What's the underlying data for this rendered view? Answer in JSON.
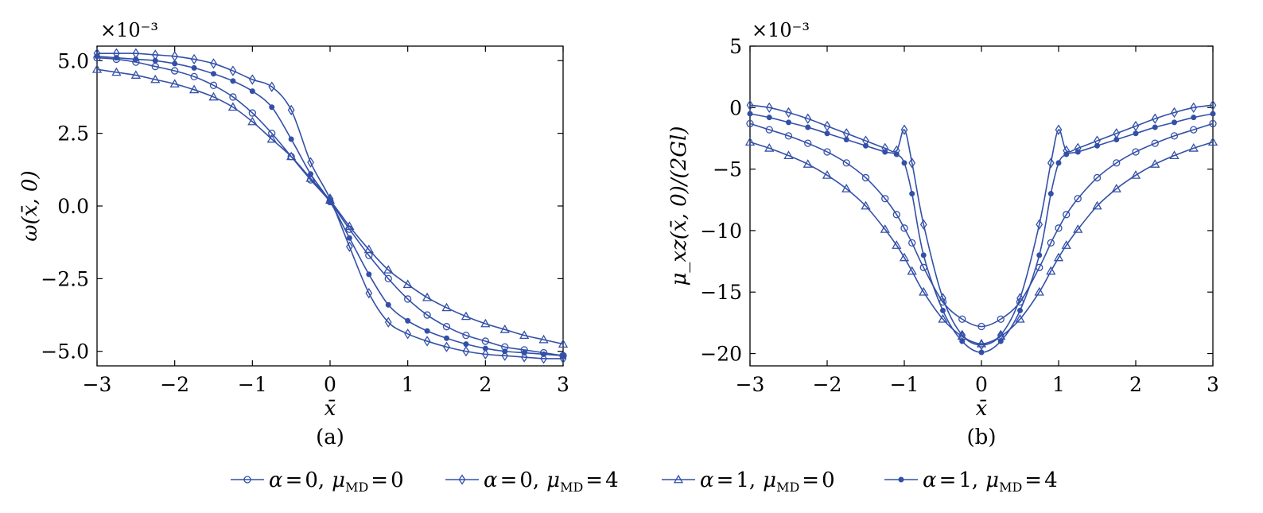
{
  "chart_data": [
    {
      "type": "line",
      "panel": "(a)",
      "caption": "(a)",
      "xlabel": "x̄",
      "ylabel": "ω(x̄, 0)",
      "y_multiplier": "×10⁻³",
      "xlim": [
        -3,
        3
      ],
      "ylim": [
        -5.5,
        5.5
      ],
      "x_ticks": [
        -3,
        -2,
        -1,
        0,
        1,
        2,
        3
      ],
      "y_ticks": [
        -5.0,
        -2.5,
        0.0,
        2.5,
        5.0
      ],
      "x_tick_labels": [
        "−3",
        "−2",
        "−1",
        "0",
        "1",
        "2",
        "3"
      ],
      "y_tick_labels": [
        "−5.0",
        "−2.5",
        "0.0",
        "2.5",
        "5.0"
      ],
      "grid": false,
      "x": [
        -3,
        -2.75,
        -2.5,
        -2.25,
        -2,
        -1.75,
        -1.5,
        -1.25,
        -1,
        -0.75,
        -0.5,
        -0.25,
        0,
        0.25,
        0.5,
        0.75,
        1,
        1.25,
        1.5,
        1.75,
        2,
        2.25,
        2.5,
        2.75,
        3
      ],
      "series": [
        {
          "name": "α = 0, μ_MD = 0",
          "marker": "circle",
          "values": [
            5.1,
            5.05,
            4.95,
            4.8,
            4.65,
            4.45,
            4.15,
            3.75,
            3.2,
            2.5,
            1.7,
            0.9,
            0.15,
            -0.8,
            -1.7,
            -2.5,
            -3.2,
            -3.75,
            -4.15,
            -4.45,
            -4.65,
            -4.85,
            -4.95,
            -5.05,
            -5.15
          ]
        },
        {
          "name": "α = 0, μ_MD = 4",
          "marker": "diamond",
          "values": [
            5.25,
            5.25,
            5.25,
            5.2,
            5.15,
            5.05,
            4.9,
            4.65,
            4.35,
            4.1,
            3.3,
            1.5,
            0.25,
            -1.4,
            -3.0,
            -4.0,
            -4.4,
            -4.65,
            -4.85,
            -5.0,
            -5.1,
            -5.15,
            -5.2,
            -5.25,
            -5.25
          ]
        },
        {
          "name": "α = 1, μ_MD = 0",
          "marker": "triangle",
          "values": [
            4.7,
            4.6,
            4.5,
            4.35,
            4.2,
            4.0,
            3.75,
            3.4,
            2.9,
            2.3,
            1.7,
            0.95,
            0.2,
            -0.7,
            -1.5,
            -2.2,
            -2.7,
            -3.15,
            -3.5,
            -3.8,
            -4.05,
            -4.25,
            -4.45,
            -4.6,
            -4.75
          ]
        },
        {
          "name": "α = 1, μ_MD = 4",
          "marker": "star",
          "values": [
            5.15,
            5.1,
            5.05,
            5.0,
            4.9,
            4.75,
            4.55,
            4.3,
            3.95,
            3.4,
            2.3,
            1.1,
            0.15,
            -1.1,
            -2.35,
            -3.4,
            -3.95,
            -4.3,
            -4.55,
            -4.75,
            -4.9,
            -5.0,
            -5.05,
            -5.1,
            -5.15
          ]
        }
      ]
    },
    {
      "type": "line",
      "panel": "(b)",
      "caption": "(b)",
      "xlabel": "x̄",
      "ylabel": "μ_xz(x̄, 0)/(2Gl)",
      "y_multiplier": "×10⁻³",
      "xlim": [
        -3,
        3
      ],
      "ylim": [
        -21,
        5
      ],
      "x_ticks": [
        -3,
        -2,
        -1,
        0,
        1,
        2,
        3
      ],
      "y_ticks": [
        -20,
        -15,
        -10,
        -5,
        0,
        5
      ],
      "x_tick_labels": [
        "−3",
        "−2",
        "−1",
        "0",
        "1",
        "2",
        "3"
      ],
      "y_tick_labels": [
        "−20",
        "−15",
        "−10",
        "−5",
        "0",
        "5"
      ],
      "grid": false,
      "x": [
        -3,
        -2.75,
        -2.5,
        -2.25,
        -2,
        -1.75,
        -1.5,
        -1.25,
        -1.1,
        -1,
        -0.9,
        -0.75,
        -0.5,
        -0.25,
        0,
        0.25,
        0.5,
        0.75,
        0.9,
        1,
        1.1,
        1.25,
        1.5,
        1.75,
        2,
        2.25,
        2.5,
        2.75,
        3
      ],
      "series": [
        {
          "name": "α = 0, μ_MD = 0",
          "marker": "circle",
          "values": [
            -1.3,
            -1.8,
            -2.3,
            -2.9,
            -3.6,
            -4.5,
            -5.7,
            -7.4,
            -8.7,
            -9.8,
            -11.0,
            -13.0,
            -15.8,
            -17.2,
            -17.8,
            -17.2,
            -15.8,
            -13.0,
            -11.0,
            -9.8,
            -8.7,
            -7.4,
            -5.7,
            -4.5,
            -3.6,
            -2.9,
            -2.3,
            -1.8,
            -1.3
          ]
        },
        {
          "name": "α = 0, μ_MD = 4",
          "marker": "diamond",
          "values": [
            0.2,
            0.0,
            -0.4,
            -0.9,
            -1.5,
            -2.1,
            -2.7,
            -3.3,
            -3.5,
            -1.8,
            -4.5,
            -9.5,
            -15.5,
            -18.5,
            -19.3,
            -18.5,
            -15.5,
            -9.5,
            -4.5,
            -1.8,
            -3.5,
            -3.3,
            -2.7,
            -2.1,
            -1.5,
            -0.9,
            -0.4,
            0.0,
            0.2
          ]
        },
        {
          "name": "α = 1, μ_MD = 0",
          "marker": "triangle",
          "values": [
            -2.8,
            -3.3,
            -3.9,
            -4.6,
            -5.5,
            -6.6,
            -8.0,
            -9.9,
            -11.2,
            -12.2,
            -13.3,
            -15.0,
            -17.2,
            -18.6,
            -19.2,
            -18.6,
            -17.2,
            -15.0,
            -13.3,
            -12.2,
            -11.2,
            -9.9,
            -8.0,
            -6.6,
            -5.5,
            -4.6,
            -3.9,
            -3.3,
            -2.8
          ]
        },
        {
          "name": "α = 1, μ_MD = 4",
          "marker": "star",
          "values": [
            -0.5,
            -0.8,
            -1.2,
            -1.6,
            -2.1,
            -2.6,
            -3.1,
            -3.6,
            -3.8,
            -4.5,
            -7.0,
            -12.0,
            -16.5,
            -19.0,
            -19.9,
            -19.0,
            -16.5,
            -12.0,
            -7.0,
            -4.5,
            -3.8,
            -3.6,
            -3.1,
            -2.6,
            -2.1,
            -1.6,
            -1.2,
            -0.8,
            -0.5
          ]
        }
      ]
    }
  ],
  "legend": {
    "placement": "bottom",
    "entries": [
      {
        "alpha": "α",
        "eq1": "=",
        "alpha_val": "0,",
        "mu": "μ",
        "mu_sub": "MD",
        "eq2": "=",
        "mu_val": "0",
        "marker": "circle"
      },
      {
        "alpha": "α",
        "eq1": "=",
        "alpha_val": "0,",
        "mu": "μ",
        "mu_sub": "MD",
        "eq2": "=",
        "mu_val": "4",
        "marker": "diamond"
      },
      {
        "alpha": "α",
        "eq1": "=",
        "alpha_val": "1,",
        "mu": "μ",
        "mu_sub": "MD",
        "eq2": "=",
        "mu_val": "0",
        "marker": "triangle"
      },
      {
        "alpha": "α",
        "eq1": "=",
        "alpha_val": "1,",
        "mu": "μ",
        "mu_sub": "MD",
        "eq2": "=",
        "mu_val": "4",
        "marker": "star"
      }
    ]
  },
  "colors": {
    "series": "#3350a8",
    "axes": "#000000"
  }
}
